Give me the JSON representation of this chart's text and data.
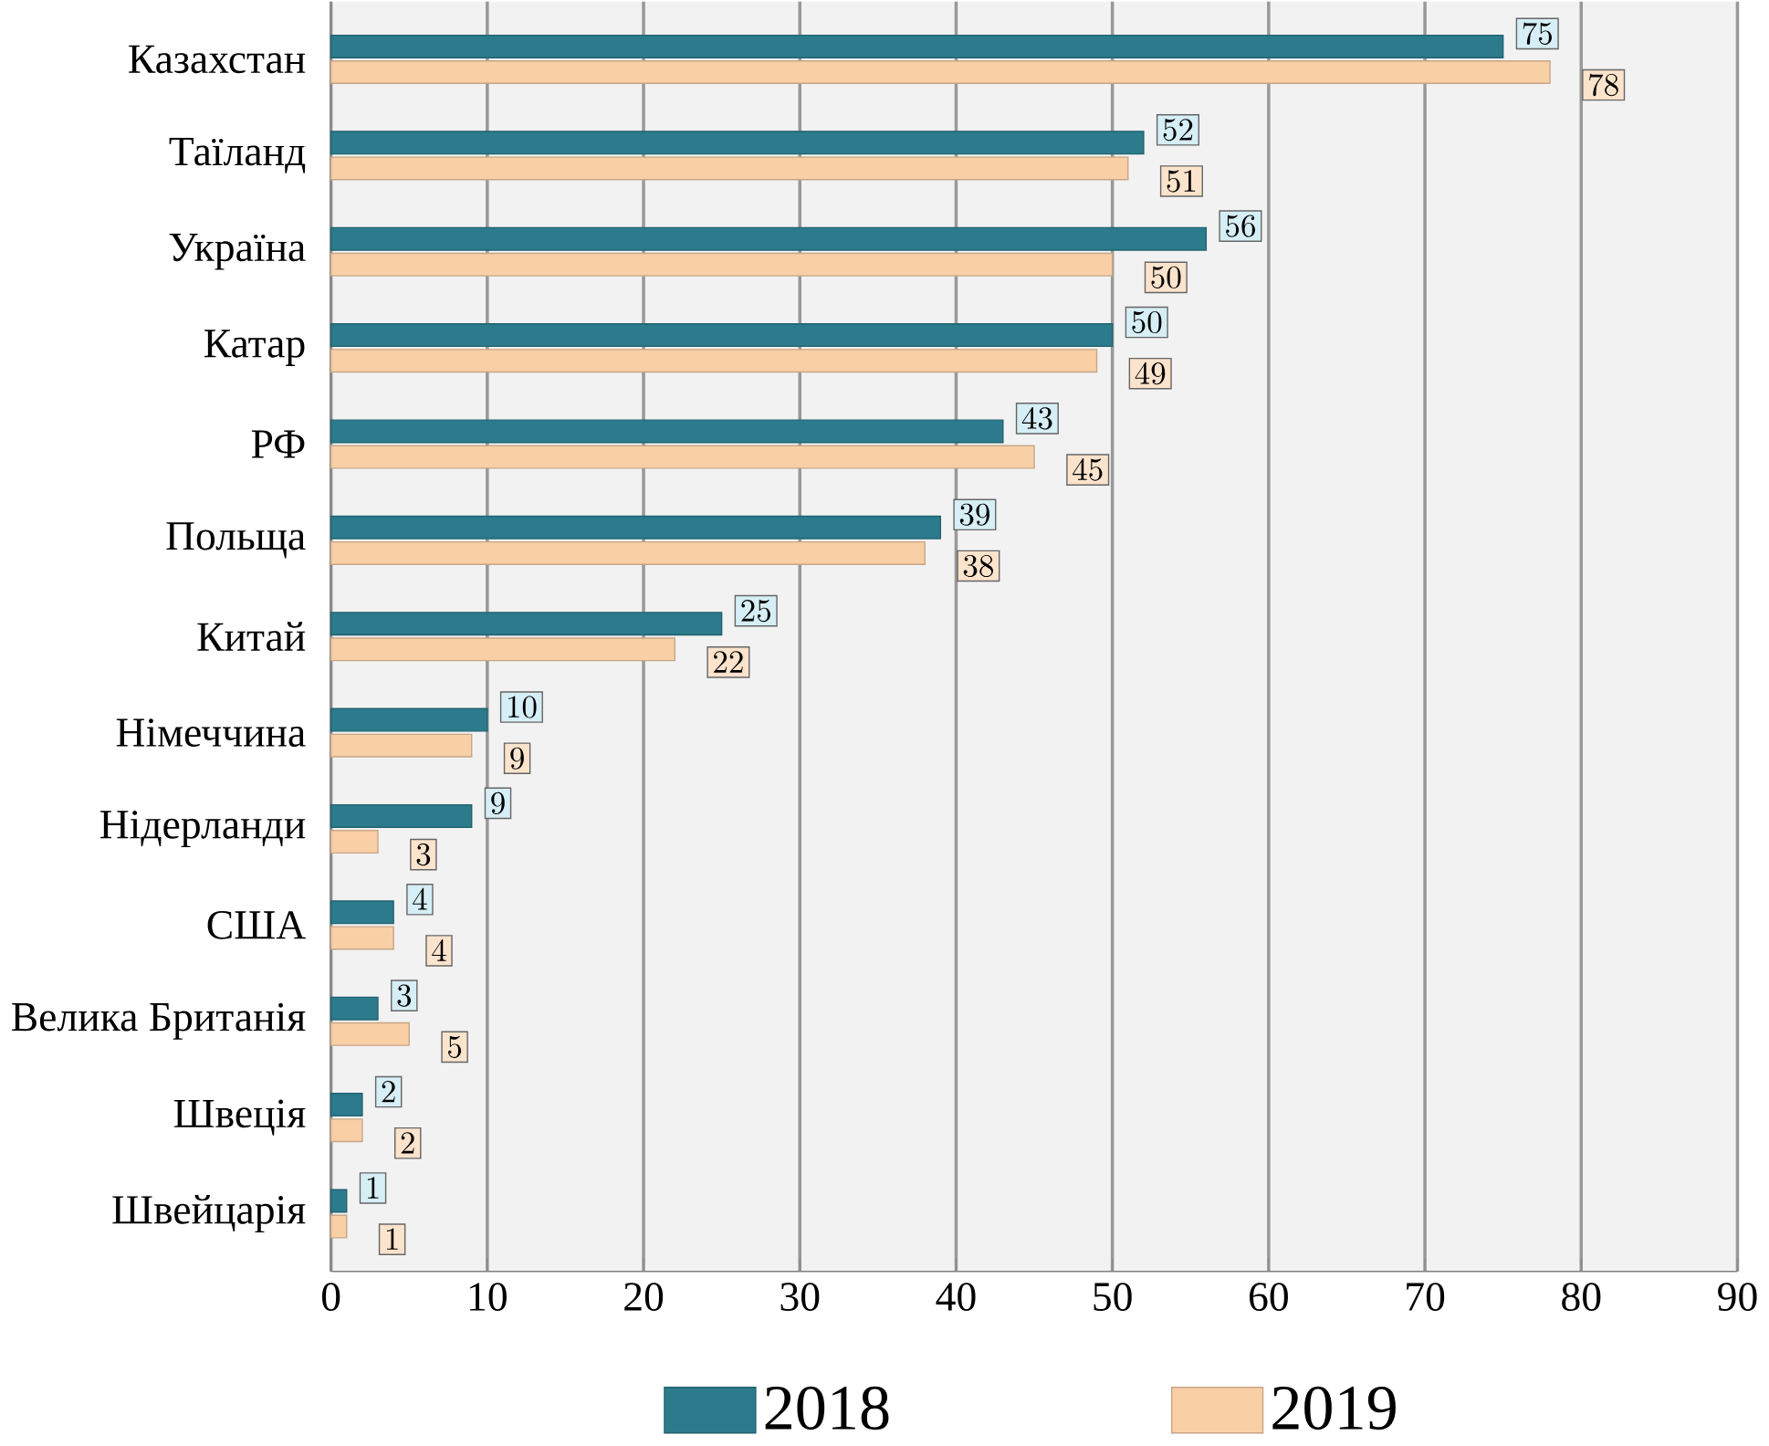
{
  "chart_data": {
    "type": "bar",
    "orientation": "horizontal",
    "categories": [
      "Казахстан",
      "Таїланд",
      "Україна",
      "Катар",
      "РФ",
      "Польща",
      "Китай",
      "Німеччина",
      "Нідерланди",
      "США",
      "Велика Британія",
      "Швеція",
      "Швейцарія"
    ],
    "series": [
      {
        "name": "2018",
        "color": "#2b7b8c",
        "values": [
          75,
          52,
          56,
          50,
          43,
          39,
          25,
          10,
          9,
          4,
          3,
          2,
          1
        ]
      },
      {
        "name": "2019",
        "color": "#f9cfa6",
        "values": [
          78,
          51,
          50,
          49,
          45,
          38,
          22,
          9,
          3,
          4,
          5,
          2,
          1
        ]
      }
    ],
    "xlim": [
      0,
      90
    ],
    "xticks": [
      0,
      10,
      20,
      30,
      40,
      50,
      60,
      70,
      80,
      90
    ],
    "grid": "x",
    "legend": "bottom",
    "data_labels": true
  }
}
